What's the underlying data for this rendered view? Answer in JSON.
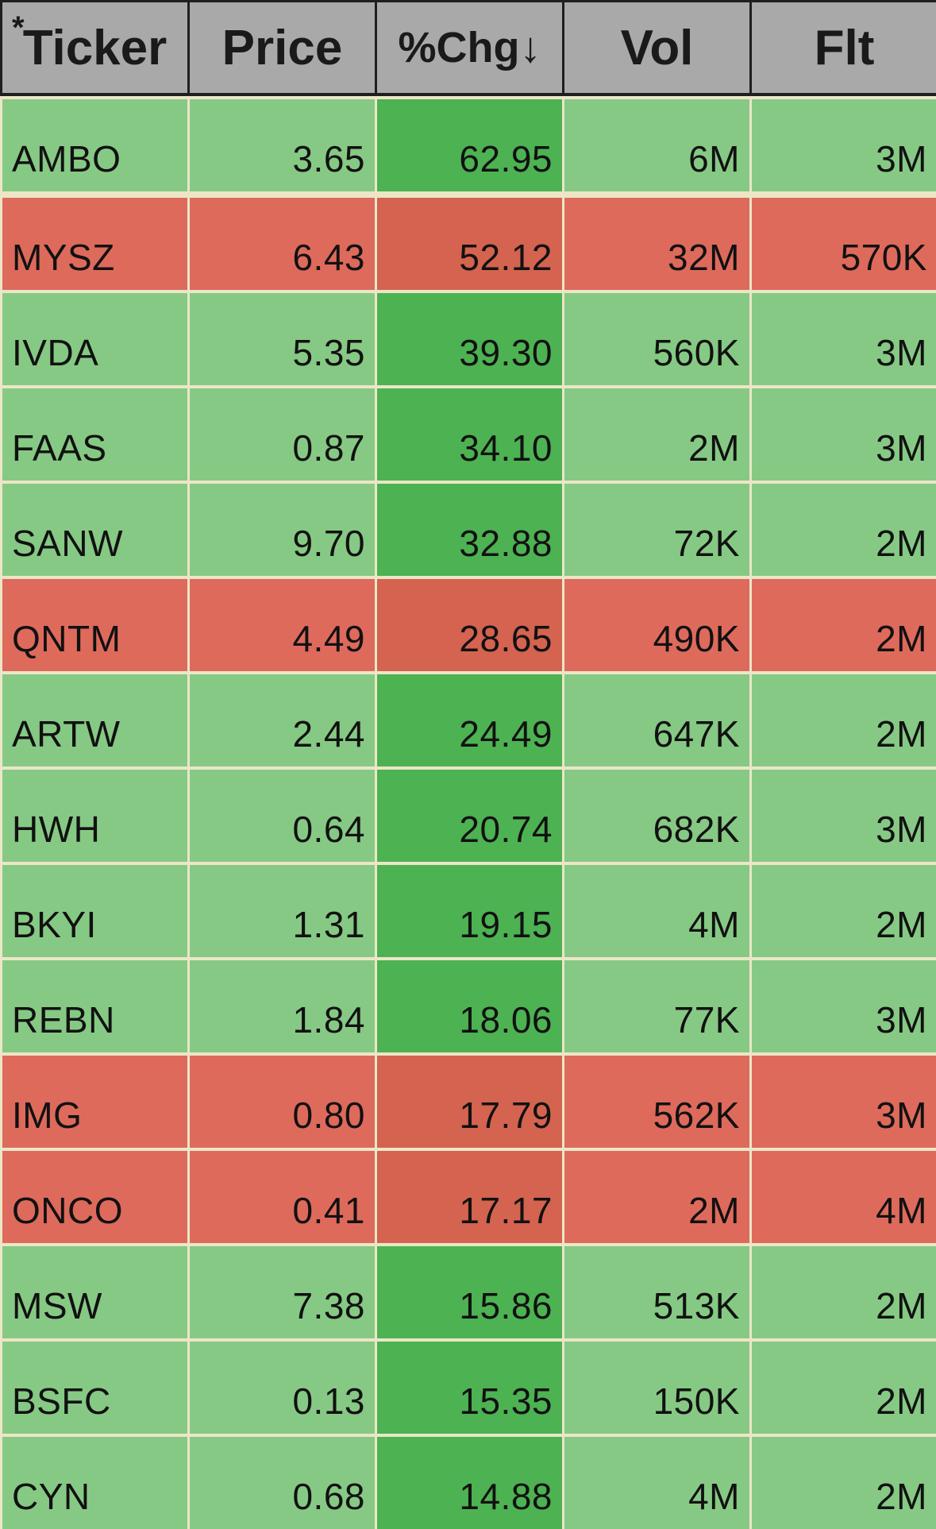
{
  "header": {
    "star": "*",
    "ticker": "Ticker",
    "price": "Price",
    "chg": "%Chg↓",
    "vol": "Vol",
    "flt": "Flt"
  },
  "colors": {
    "gain_row": "#86c984",
    "gain_chg": "#4db252",
    "loss_row": "#de6a5c",
    "loss_chg": "#d4634f",
    "header_bg": "#a9a9a9"
  },
  "rows": [
    {
      "status": "green",
      "ticker": "AMBO",
      "price": "3.65",
      "chg": "62.95",
      "vol": "6M",
      "flt": "3M"
    },
    {
      "status": "red",
      "ticker": "MYSZ",
      "price": "6.43",
      "chg": "52.12",
      "vol": "32M",
      "flt": "570K"
    },
    {
      "status": "green",
      "ticker": "IVDA",
      "price": "5.35",
      "chg": "39.30",
      "vol": "560K",
      "flt": "3M"
    },
    {
      "status": "green",
      "ticker": "FAAS",
      "price": "0.87",
      "chg": "34.10",
      "vol": "2M",
      "flt": "3M"
    },
    {
      "status": "green",
      "ticker": "SANW",
      "price": "9.70",
      "chg": "32.88",
      "vol": "72K",
      "flt": "2M"
    },
    {
      "status": "red",
      "ticker": "QNTM",
      "price": "4.49",
      "chg": "28.65",
      "vol": "490K",
      "flt": "2M"
    },
    {
      "status": "green",
      "ticker": "ARTW",
      "price": "2.44",
      "chg": "24.49",
      "vol": "647K",
      "flt": "2M"
    },
    {
      "status": "green",
      "ticker": "HWH",
      "price": "0.64",
      "chg": "20.74",
      "vol": "682K",
      "flt": "3M"
    },
    {
      "status": "green",
      "ticker": "BKYI",
      "price": "1.31",
      "chg": "19.15",
      "vol": "4M",
      "flt": "2M"
    },
    {
      "status": "green",
      "ticker": "REBN",
      "price": "1.84",
      "chg": "18.06",
      "vol": "77K",
      "flt": "3M"
    },
    {
      "status": "red",
      "ticker": "IMG",
      "price": "0.80",
      "chg": "17.79",
      "vol": "562K",
      "flt": "3M"
    },
    {
      "status": "red",
      "ticker": "ONCO",
      "price": "0.41",
      "chg": "17.17",
      "vol": "2M",
      "flt": "4M"
    },
    {
      "status": "green",
      "ticker": "MSW",
      "price": "7.38",
      "chg": "15.86",
      "vol": "513K",
      "flt": "2M"
    },
    {
      "status": "green",
      "ticker": "BSFC",
      "price": "0.13",
      "chg": "15.35",
      "vol": "150K",
      "flt": "2M"
    },
    {
      "status": "green",
      "ticker": "CYN",
      "price": "0.68",
      "chg": "14.88",
      "vol": "4M",
      "flt": "2M"
    }
  ]
}
